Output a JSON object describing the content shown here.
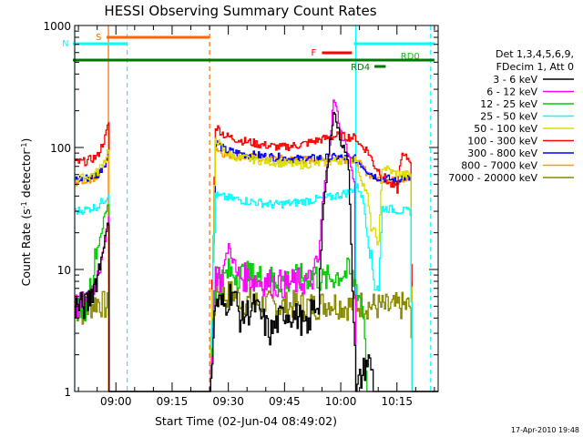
{
  "chart_data": {
    "type": "line",
    "title": "HESSI Observing Summary Count Rates",
    "xlabel": "Start Time (02-Jun-04 08:49:02)",
    "ylabel_prefix": "Count Rate (s",
    "ylabel_sup1": "-1",
    "ylabel_mid": " detector",
    "ylabel_sup2": "-1",
    "ylabel_suffix": ")",
    "yscale": "log",
    "ylim": [
      1,
      1000
    ],
    "xlim_minutes": [
      0,
      97
    ],
    "x_unit": "minutes after 08:49:02",
    "xtick_labels": [
      {
        "label": "09:00",
        "t": 11
      },
      {
        "label": "09:15",
        "t": 26
      },
      {
        "label": "09:30",
        "t": 41
      },
      {
        "label": "09:45",
        "t": 56
      },
      {
        "label": "10:00",
        "t": 71
      },
      {
        "label": "10:15",
        "t": 86
      }
    ],
    "ytick_labels": [
      {
        "label": "1000",
        "v": 1000
      },
      {
        "label": "100",
        "v": 100
      },
      {
        "label": "10",
        "v": 10
      },
      {
        "label": "1",
        "v": 1
      }
    ],
    "legend_header": [
      "Det 1,3,4,5,6,9,",
      "FDecim 1, Att 0"
    ],
    "series": [
      {
        "name": "3 - 6 keV",
        "color": "#000000",
        "points": [
          [
            0,
            5
          ],
          [
            3,
            5
          ],
          [
            6,
            9
          ],
          [
            8,
            18
          ],
          [
            9,
            25
          ],
          [
            9.2,
            1
          ],
          [
            36,
            1
          ],
          [
            37.5,
            5.5
          ],
          [
            40,
            5
          ],
          [
            42,
            7
          ],
          [
            44,
            4
          ],
          [
            48,
            5
          ],
          [
            52,
            3
          ],
          [
            56,
            4.5
          ],
          [
            60,
            4
          ],
          [
            62,
            3
          ],
          [
            63,
            4.5
          ],
          [
            65,
            5.5
          ],
          [
            66,
            25
          ],
          [
            68,
            110
          ],
          [
            69,
            200
          ],
          [
            70,
            150
          ],
          [
            71,
            110
          ],
          [
            72,
            95
          ],
          [
            73,
            70
          ],
          [
            75,
            1
          ],
          [
            78,
            1.8
          ],
          [
            79,
            1.6
          ],
          [
            80,
            1
          ],
          [
            97,
            1
          ]
        ]
      },
      {
        "name": "6 - 12 keV",
        "color": "#ff00ff",
        "points": [
          [
            0,
            5
          ],
          [
            3,
            5
          ],
          [
            6,
            9
          ],
          [
            8,
            18
          ],
          [
            9,
            25
          ],
          [
            9.2,
            1
          ],
          [
            36,
            1
          ],
          [
            37.5,
            10
          ],
          [
            39,
            8
          ],
          [
            41,
            16
          ],
          [
            43,
            9
          ],
          [
            46,
            8.5
          ],
          [
            50,
            8
          ],
          [
            56,
            7.5
          ],
          [
            60,
            8
          ],
          [
            63,
            8
          ],
          [
            65,
            12
          ],
          [
            66,
            35
          ],
          [
            68,
            110
          ],
          [
            69,
            250
          ],
          [
            70,
            190
          ],
          [
            71,
            130
          ],
          [
            73,
            90
          ],
          [
            74.5,
            50
          ],
          [
            75,
            1
          ],
          [
            97,
            1
          ]
        ]
      },
      {
        "name": "12 - 25 keV",
        "color": "#00cc00",
        "points": [
          [
            0,
            5
          ],
          [
            3,
            5
          ],
          [
            6,
            15
          ],
          [
            8,
            28
          ],
          [
            9,
            35
          ],
          [
            9.2,
            1
          ],
          [
            36,
            1
          ],
          [
            37.5,
            10
          ],
          [
            39,
            8
          ],
          [
            41,
            9.5
          ],
          [
            45,
            9
          ],
          [
            50,
            8.5
          ],
          [
            56,
            8
          ],
          [
            60,
            8.5
          ],
          [
            64,
            9
          ],
          [
            66,
            8
          ],
          [
            70,
            9
          ],
          [
            73,
            9.5
          ],
          [
            75,
            7.5
          ],
          [
            77,
            4.5
          ],
          [
            78,
            1
          ],
          [
            97,
            1
          ]
        ]
      },
      {
        "name": "25 - 50 keV",
        "color": "#00ffff",
        "points": [
          [
            0,
            30
          ],
          [
            3,
            31
          ],
          [
            6,
            33
          ],
          [
            8,
            38
          ],
          [
            9,
            42
          ],
          [
            9.2,
            1
          ],
          [
            36,
            1
          ],
          [
            37.5,
            42
          ],
          [
            38,
            40
          ],
          [
            42,
            38
          ],
          [
            47,
            36
          ],
          [
            53,
            34
          ],
          [
            58,
            35
          ],
          [
            63,
            37
          ],
          [
            68,
            39
          ],
          [
            73,
            43
          ],
          [
            75,
            48
          ],
          [
            76,
            45
          ],
          [
            77,
            35
          ],
          [
            79,
            11
          ],
          [
            80,
            8
          ],
          [
            81,
            7.5
          ],
          [
            82,
            32
          ],
          [
            85,
            31
          ],
          [
            88,
            30
          ],
          [
            89.5,
            30
          ],
          [
            90,
            1
          ],
          [
            97,
            1
          ]
        ]
      },
      {
        "name": "50 - 100 keV",
        "color": "#dddd00",
        "points": [
          [
            0,
            55
          ],
          [
            3,
            57
          ],
          [
            6,
            63
          ],
          [
            8,
            80
          ],
          [
            9,
            100
          ],
          [
            9.2,
            1
          ],
          [
            36,
            1
          ],
          [
            37.5,
            120
          ],
          [
            40,
            90
          ],
          [
            44,
            82
          ],
          [
            50,
            78
          ],
          [
            56,
            74
          ],
          [
            60,
            72
          ],
          [
            65,
            74
          ],
          [
            70,
            78
          ],
          [
            75,
            80
          ],
          [
            76,
            60
          ],
          [
            78,
            40
          ],
          [
            79,
            22
          ],
          [
            80,
            20
          ],
          [
            81,
            16
          ],
          [
            82,
            70
          ],
          [
            85,
            62
          ],
          [
            88,
            60
          ],
          [
            89.5,
            60
          ],
          [
            90,
            1
          ],
          [
            97,
            1
          ]
        ]
      },
      {
        "name": "100 - 300 keV",
        "color": "#ff0000",
        "points": [
          [
            0,
            75
          ],
          [
            3,
            77
          ],
          [
            6,
            85
          ],
          [
            8,
            120
          ],
          [
            9,
            160
          ],
          [
            9.2,
            1
          ],
          [
            36,
            1
          ],
          [
            37.5,
            150
          ],
          [
            40,
            125
          ],
          [
            44,
            115
          ],
          [
            50,
            105
          ],
          [
            55,
            100
          ],
          [
            60,
            105
          ],
          [
            65,
            115
          ],
          [
            70,
            125
          ],
          [
            75,
            120
          ],
          [
            76,
            105
          ],
          [
            78,
            95
          ],
          [
            80,
            70
          ],
          [
            82,
            60
          ],
          [
            84,
            50
          ],
          [
            86,
            45
          ],
          [
            87,
            85
          ],
          [
            89.5,
            80
          ],
          [
            90,
            1
          ],
          [
            97,
            1
          ]
        ]
      },
      {
        "name": "300 - 800 keV",
        "color": "#0000ff",
        "points": [
          [
            0,
            55
          ],
          [
            3,
            56
          ],
          [
            6,
            60
          ],
          [
            8,
            75
          ],
          [
            9,
            90
          ],
          [
            9.2,
            1
          ],
          [
            36,
            1
          ],
          [
            37.5,
            110
          ],
          [
            40,
            95
          ],
          [
            45,
            88
          ],
          [
            50,
            85
          ],
          [
            56,
            82
          ],
          [
            60,
            80
          ],
          [
            66,
            82
          ],
          [
            70,
            83
          ],
          [
            75,
            80
          ],
          [
            78,
            65
          ],
          [
            80,
            58
          ],
          [
            84,
            55
          ],
          [
            86,
            52
          ],
          [
            87,
            58
          ],
          [
            89.5,
            55
          ],
          [
            90,
            1
          ],
          [
            97,
            1
          ]
        ]
      },
      {
        "name": "800 - 7000 keV",
        "color": "#ff9900",
        "points": [
          [
            0,
            52
          ],
          [
            3,
            54
          ],
          [
            6,
            58
          ],
          [
            8,
            72
          ],
          [
            9,
            88
          ],
          [
            9.2,
            1
          ],
          [
            36,
            1
          ],
          [
            37.5,
            100
          ],
          [
            40,
            88
          ],
          [
            45,
            84
          ],
          [
            50,
            82
          ],
          [
            56,
            80
          ],
          [
            60,
            79
          ],
          [
            66,
            80
          ],
          [
            70,
            82
          ],
          [
            75,
            78
          ],
          [
            78,
            62
          ],
          [
            80,
            56
          ],
          [
            84,
            54
          ],
          [
            86,
            52
          ],
          [
            87,
            56
          ],
          [
            89.5,
            54
          ],
          [
            90,
            1
          ],
          [
            97,
            1
          ]
        ]
      },
      {
        "name": "7000 - 20000 keV",
        "color": "#888800",
        "points": [
          [
            0,
            4.8
          ],
          [
            2,
            4.5
          ],
          [
            4,
            5
          ],
          [
            6,
            5.5
          ],
          [
            8,
            5
          ],
          [
            9,
            5
          ],
          [
            9.2,
            1
          ],
          [
            36,
            1
          ],
          [
            37.5,
            7
          ],
          [
            40,
            6
          ],
          [
            42,
            6.5
          ],
          [
            45,
            5.5
          ],
          [
            50,
            5.2
          ],
          [
            55,
            5
          ],
          [
            60,
            5.2
          ],
          [
            64,
            5
          ],
          [
            68,
            5.4
          ],
          [
            72,
            5
          ],
          [
            76,
            5.2
          ],
          [
            80,
            5
          ],
          [
            84,
            4.8
          ],
          [
            87,
            5
          ],
          [
            89.5,
            5
          ],
          [
            90,
            1
          ],
          [
            97,
            1
          ]
        ]
      }
    ],
    "flag_bars": [
      {
        "label": "S",
        "color": "#ff6600",
        "start": 8.5,
        "end": 36,
        "level": "top"
      },
      {
        "label": "N",
        "color": "#00ffff",
        "start": -2,
        "end": 14,
        "level": "second"
      },
      {
        "label": "F",
        "color": "#ff0000",
        "start": 66,
        "end": 74,
        "level": "flare"
      },
      {
        "label": "RD0",
        "color": "#00cc00",
        "start": 86,
        "end": 95,
        "level": "rd0"
      },
      {
        "label": "RD4",
        "color": "#007700",
        "start": 80,
        "end": 83,
        "level": "rd4"
      },
      {
        "label": "",
        "color": "#00ffff",
        "start": 74.5,
        "end": 96,
        "level": "second"
      },
      {
        "label": "",
        "color": "#007700",
        "start": -2,
        "end": 96,
        "level": "green"
      }
    ],
    "vertical_lines": [
      {
        "t": 9,
        "color": "#ff6600",
        "dashed": false
      },
      {
        "t": 36,
        "color": "#ff6600",
        "dashed": true
      },
      {
        "t": 14,
        "color": "#00ffff",
        "dashed": true
      },
      {
        "t": 75,
        "color": "#00ffff",
        "dashed": false
      },
      {
        "t": 95,
        "color": "#00ffff",
        "dashed": true
      },
      {
        "t": 0,
        "color": "#00ffff",
        "dashed": false
      }
    ],
    "timestamp": "17-Apr-2010 19:48"
  }
}
